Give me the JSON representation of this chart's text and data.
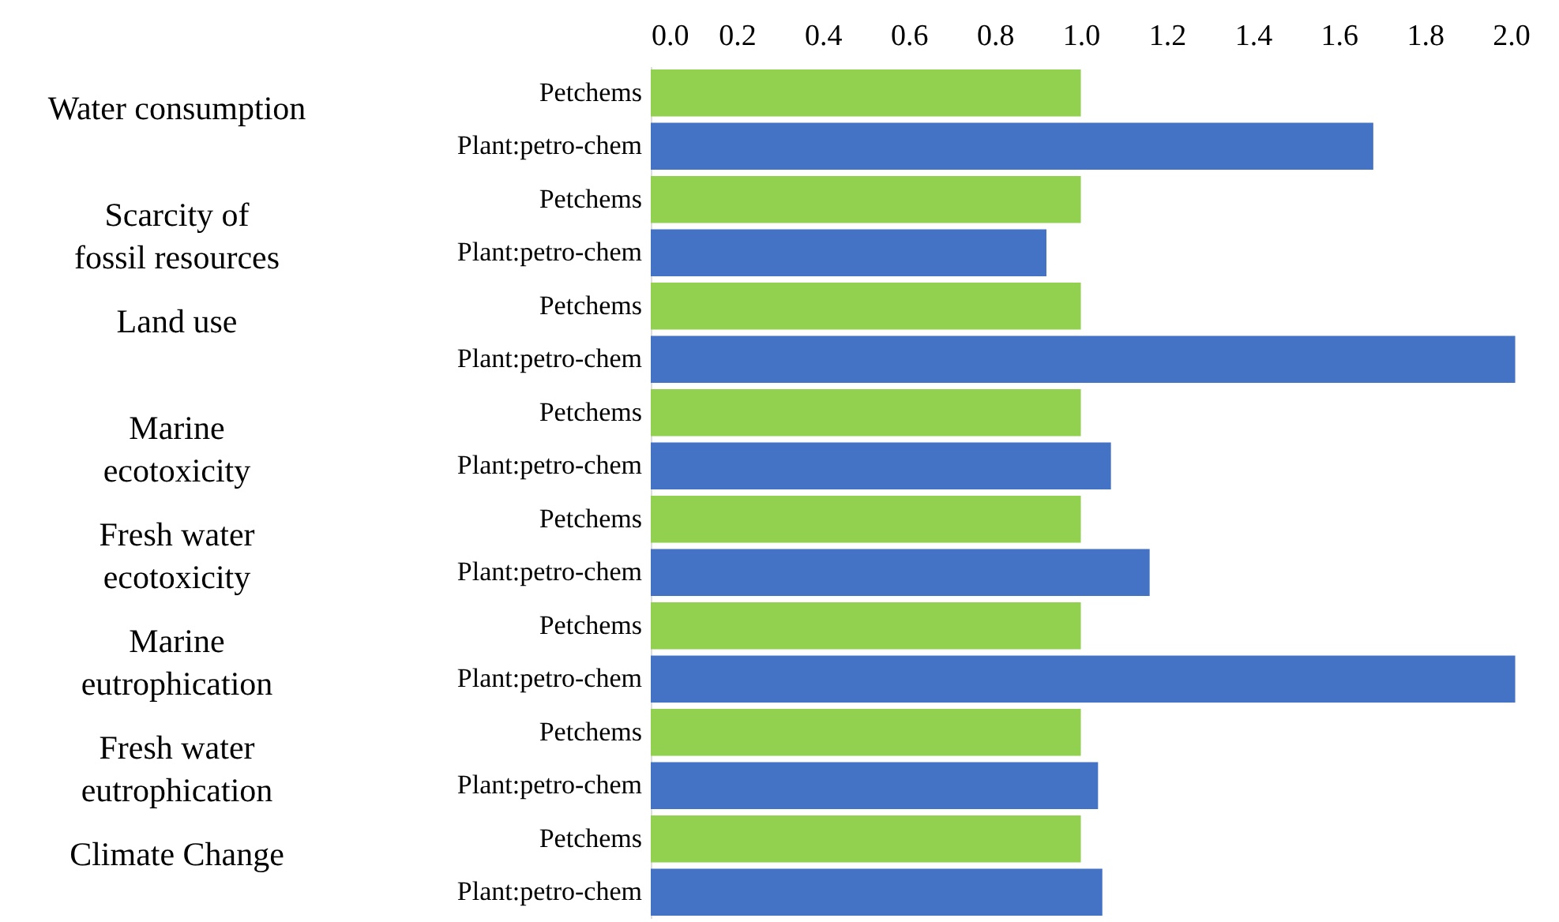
{
  "chart_data": {
    "type": "bar",
    "orientation": "horizontal",
    "categories": [
      "Petchems",
      "Plant:petro-chem",
      "Petchems",
      "Plant:petro-chem",
      "Petchems",
      "Plant:petro-chem",
      "Petchems",
      "Plant:petro-chem",
      "Petchems",
      "Plant:petro-chem",
      "Petchems",
      "Plant:petro-chem",
      "Petchems",
      "Plant:petro-chem",
      "Petchems",
      "Plant:petro-chem"
    ],
    "values": [
      1.0,
      1.68,
      1.0,
      0.92,
      1.0,
      2.01,
      1.0,
      1.07,
      1.0,
      1.16,
      1.0,
      2.01,
      1.0,
      1.04,
      1.0,
      1.05
    ],
    "colors": [
      "#92d050",
      "#4472c4",
      "#92d050",
      "#4472c4",
      "#92d050",
      "#4472c4",
      "#92d050",
      "#4472c4",
      "#92d050",
      "#4472c4",
      "#92d050",
      "#4472c4",
      "#92d050",
      "#4472c4",
      "#92d050",
      "#4472c4"
    ],
    "annotations": [
      "Water consumption",
      "Scarcity of fossil resources",
      "Land use",
      "Marine ecotoxicity",
      "Fresh water ecotoxicity",
      "Marine eutrophication",
      "Fresh water eutrophication",
      "Climate Change"
    ],
    "xlim": [
      0,
      2.02
    ],
    "xticks": [
      {
        "value": 0,
        "label": "0.0"
      },
      0.2,
      0.4,
      0.6,
      0.8,
      {
        "value": 1,
        "label": "1.0"
      },
      1.2,
      1.4,
      1.6,
      1.8,
      {
        "value": 2,
        "label": "2.0"
      }
    ],
    "grid": false
  }
}
